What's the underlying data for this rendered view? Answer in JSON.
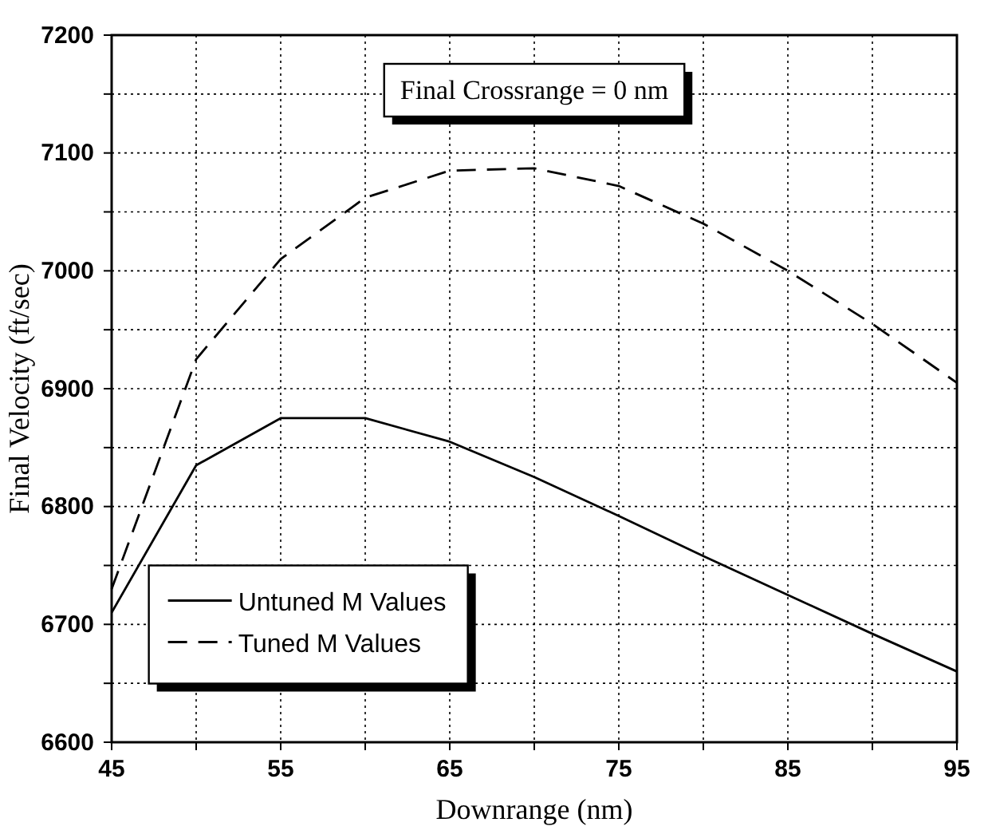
{
  "chart_data": {
    "type": "line",
    "xlabel": "Downrange (nm)",
    "ylabel": "Final Velocity (ft/sec)",
    "annotations": [
      "Final Crossrange = 0 nm"
    ],
    "x": [
      45,
      50,
      55,
      60,
      65,
      70,
      75,
      80,
      85,
      90,
      95
    ],
    "series": [
      {
        "name": "Untuned M Values",
        "color": "#000000",
        "line_style": "solid",
        "values": [
          6710,
          6835,
          6875,
          6875,
          6855,
          6825,
          6792,
          6758,
          6725,
          6692,
          6660
        ]
      },
      {
        "name": "Tuned M Values",
        "color": "#000000",
        "line_style": "dashed",
        "values": [
          6730,
          6925,
          7010,
          7062,
          7085,
          7087,
          7072,
          7040,
          7000,
          6955,
          6905
        ]
      }
    ],
    "xlim": [
      45,
      95
    ],
    "ylim": [
      6600,
      7200
    ],
    "xticks": [
      45,
      {
        "value": 50,
        "label": null
      },
      55,
      {
        "value": 60,
        "label": null
      },
      65,
      {
        "value": 70,
        "label": null
      },
      75,
      {
        "value": 80,
        "label": null
      },
      85,
      {
        "value": 90,
        "label": null
      },
      95
    ],
    "yticks": [
      6600,
      {
        "value": 6650,
        "label": null
      },
      6700,
      {
        "value": 6750,
        "label": null
      },
      6800,
      {
        "value": 6850,
        "label": null
      },
      6900,
      {
        "value": 6950,
        "label": null
      },
      7000,
      {
        "value": 7050,
        "label": null
      },
      7100,
      {
        "value": 7150,
        "label": null
      },
      7200
    ],
    "grid": true,
    "legend": "bottom left",
    "marker": "none"
  }
}
